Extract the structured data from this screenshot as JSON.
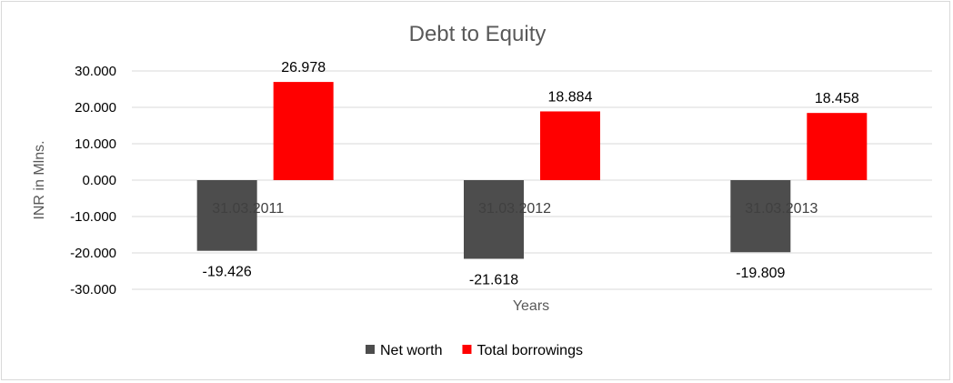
{
  "chart_data": {
    "type": "bar",
    "title": "Debt to Equity",
    "xlabel": "Years",
    "ylabel": "INR in Mlns.",
    "categories": [
      "31.03.2011",
      "31.03.2012",
      "31.03.2013"
    ],
    "series": [
      {
        "name": "Net worth",
        "values": [
          -19.426,
          -21.618,
          -19.809
        ],
        "labels": [
          "-19.426",
          "-21.618",
          "-19.809"
        ],
        "color": "#4d4d4d"
      },
      {
        "name": "Total borrowings",
        "values": [
          26.978,
          18.884,
          18.458
        ],
        "labels": [
          "26.978",
          "18.884",
          "18.458"
        ],
        "color": "#ff0000"
      }
    ],
    "ylim": [
      -30,
      30
    ],
    "yticks": [
      30,
      20,
      10,
      0,
      -10,
      -20,
      -30
    ],
    "ytick_labels": [
      "30.000",
      "20.000",
      "10.000",
      "0.000",
      "-10.000",
      "-20.000",
      "-30.000"
    ],
    "grid": true,
    "legend_position": "bottom"
  }
}
